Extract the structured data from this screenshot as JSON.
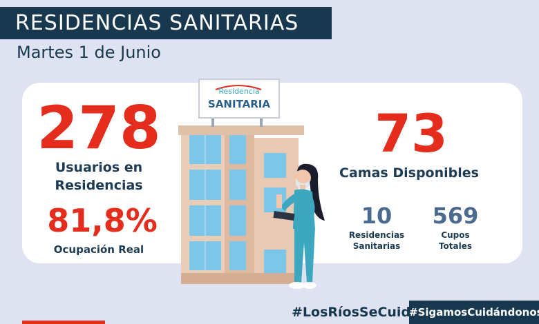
{
  "header": {
    "title": "RESIDENCIAS SANITARIAS",
    "date": "Martes 1 de Junio"
  },
  "stats": {
    "users": {
      "value": "278",
      "label_line1": "Usuarios en",
      "label_line2": "Residencias"
    },
    "occupancy": {
      "value": "81,8%",
      "label": "Ocupación Real"
    },
    "beds": {
      "value": "73",
      "label": "Camas Disponibles"
    },
    "residences": {
      "value": "10",
      "label_line1": "Residencias",
      "label_line2": "Sanitarias"
    },
    "slots": {
      "value": "569",
      "label_line1": "Cupos",
      "label_line2": "Totales"
    }
  },
  "sign": {
    "line1": "Residencia",
    "line2": "SANITARIA"
  },
  "footer": {
    "hashtag_primary": "#LosRíosSeCuida",
    "hashtag_secondary": "#SigamosCuidándonos"
  },
  "colors": {
    "navy": "#17384f",
    "red": "#e42d1c",
    "slate": "#4b6a8e",
    "background": "#dfe3f1"
  }
}
